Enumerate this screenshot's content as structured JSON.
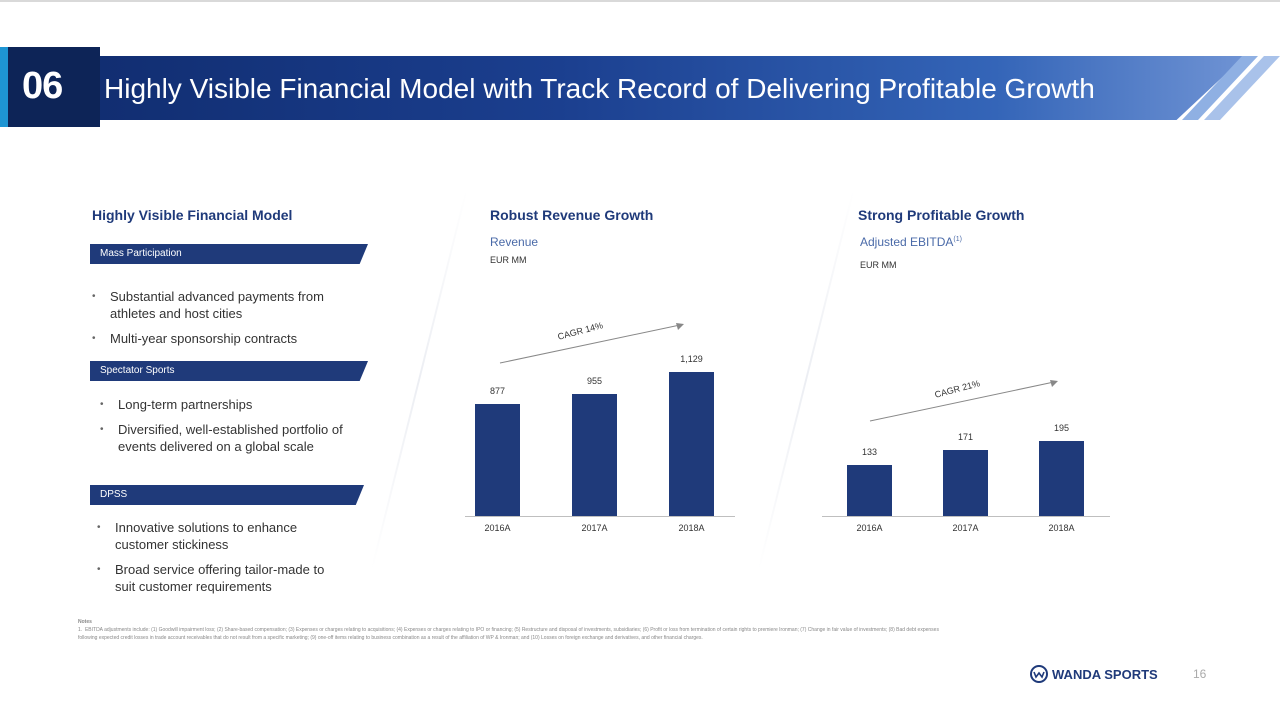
{
  "header": {
    "number": "06",
    "title": "Highly Visible Financial Model with Track Record of Delivering Profitable Growth"
  },
  "left": {
    "title": "Highly Visible Financial Model",
    "sections": [
      {
        "tag": "Mass Participation",
        "bullets": [
          "Substantial advanced payments from athletes and host cities",
          "Multi-year sponsorship contracts"
        ]
      },
      {
        "tag": "Spectator Sports",
        "bullets": [
          "Long-term partnerships",
          "Diversified, well-established portfolio of events delivered on a global scale"
        ]
      },
      {
        "tag": "DPSS",
        "bullets": [
          "Innovative solutions to enhance customer stickiness",
          "Broad service offering tailor-made to suit customer requirements"
        ]
      }
    ]
  },
  "revenue": {
    "title": "Robust Revenue Growth",
    "subtitle": "Revenue",
    "unit": "EUR MM",
    "cagr": "CAGR 14%"
  },
  "ebitda": {
    "title": "Strong Profitable Growth",
    "subtitle": "Adjusted EBITDA",
    "sup": "(1)",
    "unit": "EUR MM",
    "cagr": "CAGR 21%"
  },
  "chart_data": [
    {
      "type": "bar",
      "title": "Robust Revenue Growth",
      "subtitle": "Revenue",
      "unit": "EUR MM",
      "categories": [
        "2016A",
        "2017A",
        "2018A"
      ],
      "values": [
        877,
        955,
        1129
      ],
      "value_labels": [
        "877",
        "955",
        "1,129"
      ],
      "annotation": "CAGR 14%",
      "color": "#1f3a7a",
      "grid": false
    },
    {
      "type": "bar",
      "title": "Strong Profitable Growth",
      "subtitle": "Adjusted EBITDA",
      "unit": "EUR MM",
      "categories": [
        "2016A",
        "2017A",
        "2018A"
      ],
      "values": [
        133,
        171,
        195
      ],
      "value_labels": [
        "133",
        "171",
        "195"
      ],
      "annotation": "CAGR 21%",
      "color": "#1f3a7a",
      "grid": false
    }
  ],
  "notes": {
    "label": "Notes",
    "marker": "1.",
    "text": "EBITDA adjustments include: (1) Goodwill impairment loss; (2) Share-based compensation; (3) Expenses or charges relating to acquisitions; (4) Expenses or charges relating to IPO or financing; (5) Restructure and disposal of investments, subsidiaries; (6) Profit or loss from termination of certain rights to premiere Ironman; (7) Change in fair value of investments; (8) Bad debt expenses following expected credit losses in trade account receivables that do not result from a specific marketing; (9) one-off items relating to business combination as a result of the affiliation of WP & Ironman; and (10) Losses on foreign exchange and derivatives, and other financial charges."
  },
  "footer": {
    "logo": "WANDA SPORTS",
    "page": "16"
  }
}
